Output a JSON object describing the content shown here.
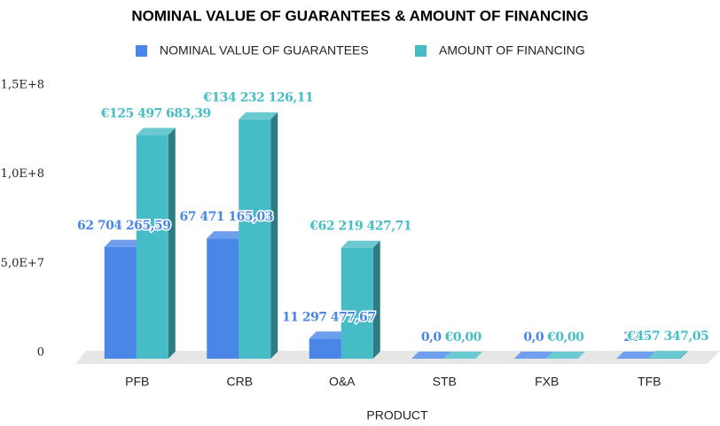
{
  "chart_data": {
    "type": "bar3d",
    "title": "NOMINAL VALUE OF GUARANTEES & AMOUNT OF FINANCING",
    "x_label": "PRODUCT",
    "categories": [
      "PFB",
      "CRB",
      "O&A",
      "STB",
      "FXB",
      "TFB"
    ],
    "series": [
      {
        "name": "NOMINAL VALUE OF GUARANTEES",
        "color": "#4a86e8",
        "values": [
          62704265.59,
          67471165.03,
          11297477.67,
          0,
          0,
          228
        ],
        "value_labels": [
          "62 704 265,59",
          "67 471 165,03",
          "11 297 477,67",
          "0,0",
          "0,0",
          "228"
        ]
      },
      {
        "name": "AMOUNT OF FINANCING",
        "color": "#46bdc6",
        "values": [
          125497683.39,
          134232126.11,
          62219427.71,
          0,
          0,
          457347.05
        ],
        "value_labels": [
          "€125 497 683,39",
          "€134 232 126,11",
          "€62 219 427,71",
          "€0,00",
          "€0,00",
          "€457 347,05"
        ]
      }
    ],
    "ylim": [
      0,
      150000000
    ],
    "yticks": [
      0,
      {
        "value": 50000000,
        "label": "5,0E+7"
      },
      {
        "value": 100000000,
        "label": "1,0E+8"
      },
      {
        "value": 150000000,
        "label": "1,5E+8"
      }
    ],
    "legend": "top"
  }
}
